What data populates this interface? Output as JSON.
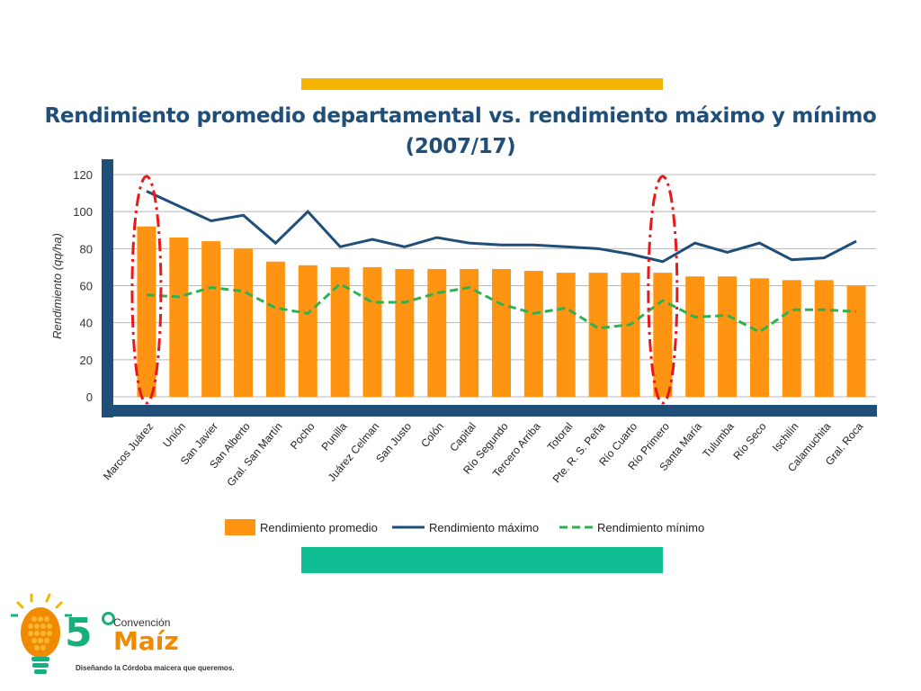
{
  "slide": {
    "title_line1": "Rendimiento promedio departamental vs. rendimiento máximo y mínimo",
    "title_line2": "(2007/17)"
  },
  "colors": {
    "accent_top": "#f5b400",
    "accent_bottom": "#0fbf93",
    "bar": "#ff9412",
    "max_line": "#1f4e79",
    "min_line": "#2eb24f",
    "axis": "#1f4e79",
    "highlight": "#e8181d"
  },
  "chart_data": {
    "type": "bar",
    "ylabel": "Rendimiento (qq/ha)",
    "ylim": [
      0,
      120
    ],
    "yticks": [
      0,
      20,
      40,
      60,
      80,
      100,
      120
    ],
    "grid": true,
    "legend_position": "bottom",
    "categories": [
      "Marcos Juárez",
      "Unión",
      "San Javier",
      "San Alberto",
      "Gral. San Martín",
      "Pocho",
      "Punilla",
      "Juárez Celman",
      "San Justo",
      "Colón",
      "Capital",
      "Río Segundo",
      "Tercero Arriba",
      "Totoral",
      "Pte. R. S. Peña",
      "Río Cuarto",
      "Río Primero",
      "Santa María",
      "Tulumba",
      "Río Seco",
      "Ischilín",
      "Calamuchita",
      "Gral. Roca"
    ],
    "series": [
      {
        "name": "Rendimiento promedio",
        "type": "bar",
        "values": [
          92,
          86,
          84,
          80,
          73,
          71,
          70,
          70,
          69,
          69,
          69,
          69,
          68,
          67,
          67,
          67,
          67,
          65,
          65,
          64,
          63,
          63,
          60
        ]
      },
      {
        "name": "Rendimiento máximo",
        "type": "line",
        "values": [
          111,
          103,
          95,
          98,
          83,
          100,
          81,
          85,
          81,
          86,
          83,
          82,
          82,
          81,
          80,
          77,
          73,
          83,
          78,
          83,
          74,
          75,
          84
        ]
      },
      {
        "name": "Rendimiento mínimo",
        "type": "line",
        "style": "dashed",
        "values": [
          55,
          54,
          59,
          57,
          48,
          45,
          61,
          51,
          51,
          56,
          59,
          50,
          45,
          48,
          37,
          39,
          52,
          43,
          44,
          35,
          47,
          47,
          46
        ]
      }
    ],
    "highlights": [
      "Marcos Juárez",
      "Río Primero"
    ]
  },
  "logo": {
    "number": "5",
    "subtitle": "Convención",
    "name": "Maíz",
    "tagline": "Diseñando la Córdoba maicera que queremos."
  }
}
